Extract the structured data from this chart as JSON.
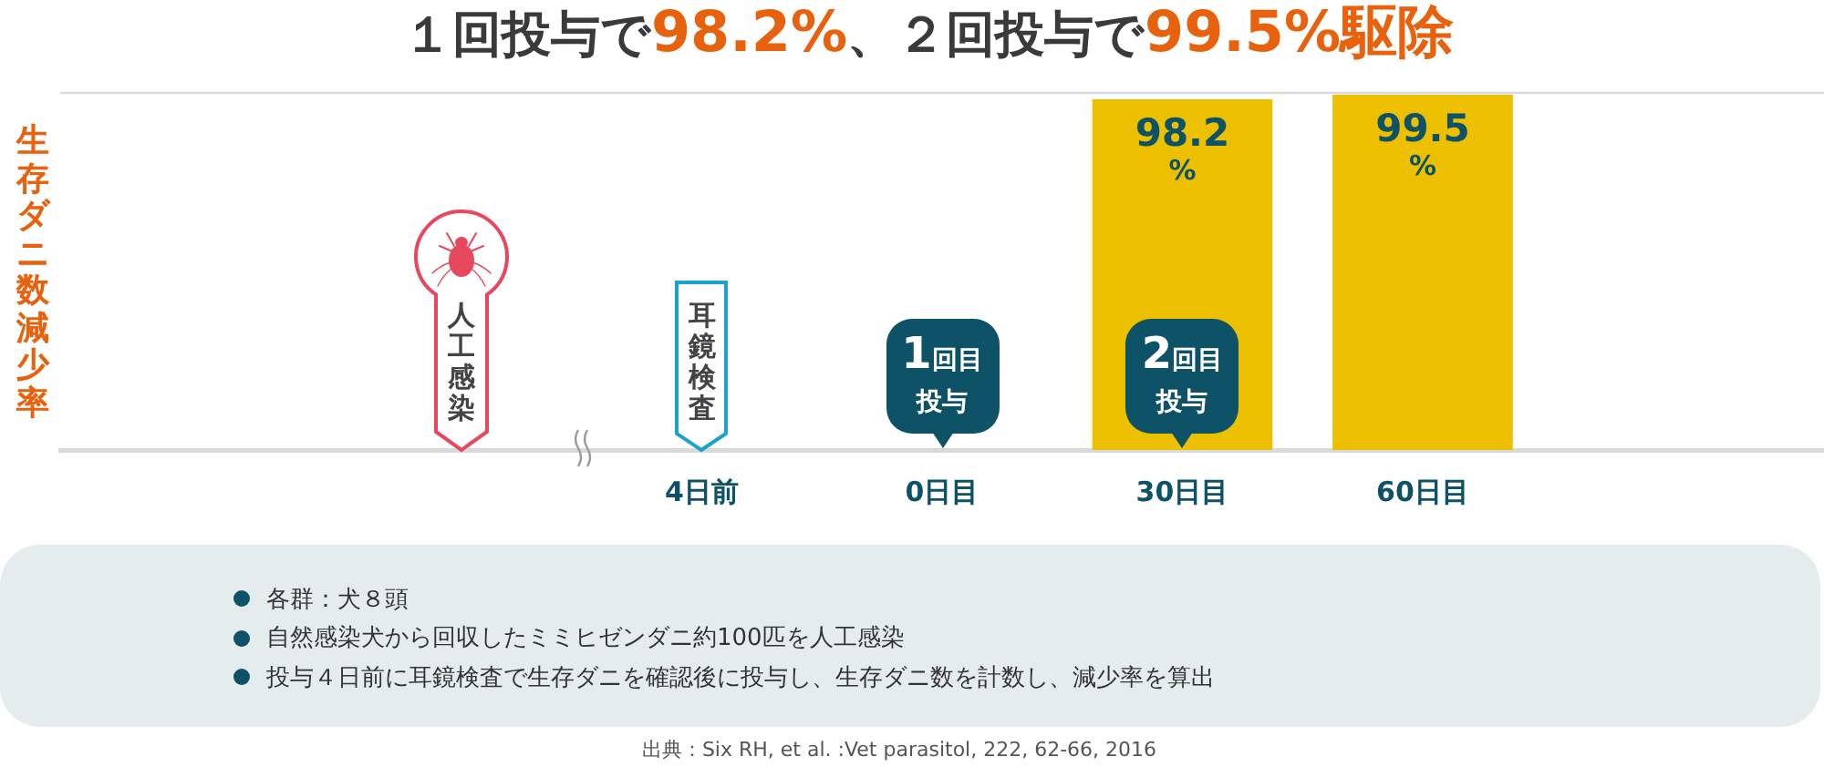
{
  "chart_data": {
    "type": "bar",
    "title": "１回投与で98.2%、２回投与で99.5%駆除",
    "categories": [
      null,
      "4日前",
      "0日目",
      "30日目",
      "60日目"
    ],
    "values": [
      null,
      null,
      null,
      98.2,
      99.5
    ],
    "color": "#ecbf00",
    "value_labels": [
      null,
      null,
      null,
      "98.2\n%",
      "99.5\n%"
    ],
    "ylim": [
      0,
      100
    ],
    "tick_labels": "x",
    "annotations": [
      "生存ダニ数減少率",
      "人工感染",
      "耳鏡検査",
      "1回目投与",
      "2回目投与",
      "各群：犬８頭",
      "自然感染犬から回収したミミヒゼンダニ約100匹を人工感染",
      "投与４日前に耳鏡検査で生存ダニを確認後に投与し、生存ダニ数を計数し、減少率を算出",
      "出典：Six RH, et al. :Vet parasitol, 222, 62-66, 2016"
    ]
  }
}
